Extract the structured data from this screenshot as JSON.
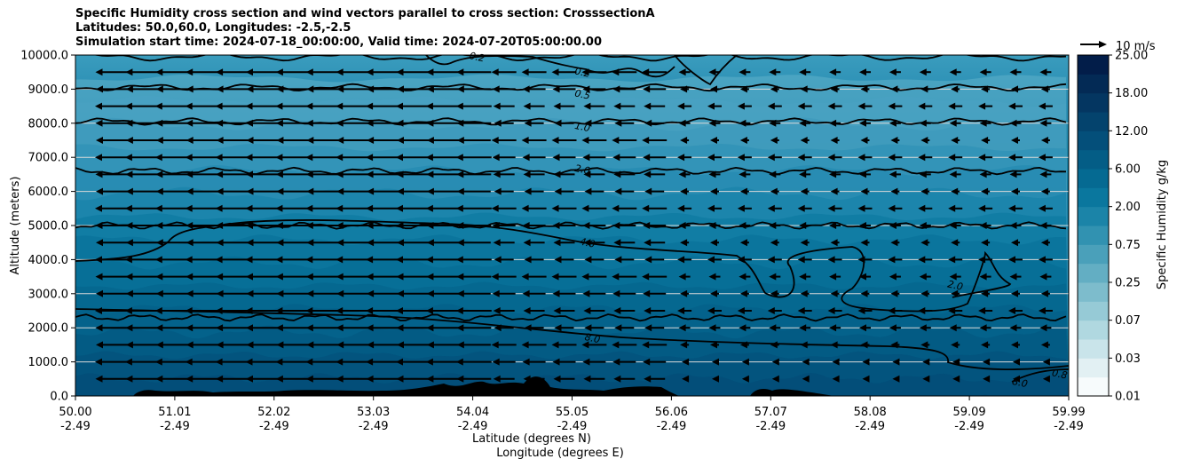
{
  "chart_data": {
    "type": "contour",
    "title_lines": [
      "Specific Humidity cross section and wind vectors parallel to cross section: CrosssectionA",
      "Latitudes: 50.0,60.0, Longitudes: -2.5,-2.5",
      "Simulation start time: 2024-07-18_00:00:00, Valid time: 2024-07-20T05:00:00.00"
    ],
    "ylabel": "Altitude (meters)",
    "xlabel_lat": "Latitude (degrees N)",
    "xlabel_lon": "Longitude (degrees E)",
    "ylim": [
      0,
      10000
    ],
    "xlim": [
      50.0,
      59.99
    ],
    "y_ticks": [
      "0.0",
      "1000.0",
      "2000.0",
      "3000.0",
      "4000.0",
      "5000.0",
      "6000.0",
      "7000.0",
      "8000.0",
      "9000.0",
      "10000.0"
    ],
    "x_ticks": [
      {
        "lat": "50.00",
        "lon": "-2.49"
      },
      {
        "lat": "51.01",
        "lon": "-2.49"
      },
      {
        "lat": "52.02",
        "lon": "-2.49"
      },
      {
        "lat": "53.03",
        "lon": "-2.49"
      },
      {
        "lat": "54.04",
        "lon": "-2.49"
      },
      {
        "lat": "55.05",
        "lon": "-2.49"
      },
      {
        "lat": "56.06",
        "lon": "-2.49"
      },
      {
        "lat": "57.07",
        "lon": "-2.49"
      },
      {
        "lat": "58.08",
        "lon": "-2.49"
      },
      {
        "lat": "59.09",
        "lon": "-2.49"
      },
      {
        "lat": "59.99",
        "lon": "-2.49"
      }
    ],
    "colorbar": {
      "label": "Specific Humidity g/kg",
      "tick_labels": [
        "0.01",
        "0.03",
        "0.07",
        "0.25",
        "0.75",
        "2.00",
        "6.00",
        "12.00",
        "18.00",
        "25.00"
      ],
      "colors": [
        "#f7fbfc",
        "#e2f0f3",
        "#c9e4ea",
        "#b0d8e0",
        "#96cad6",
        "#7dbccc",
        "#63aec3",
        "#4aa0ba",
        "#3192b1",
        "#1b84a8",
        "#0a779e",
        "#056a92",
        "#045d86",
        "#044f7a",
        "#04436d",
        "#043661",
        "#032a55",
        "#021d49"
      ]
    },
    "contour_labels": [
      {
        "text": "0.2",
        "lat": 54.04,
        "alt": 9950
      },
      {
        "text": "0.2",
        "lat": 55.1,
        "alt": 9500
      },
      {
        "text": "0.5",
        "lat": 55.1,
        "alt": 8850
      },
      {
        "text": "1.0",
        "lat": 55.1,
        "alt": 7900
      },
      {
        "text": "2.0",
        "lat": 55.1,
        "alt": 6650
      },
      {
        "text": "4.0",
        "lat": 55.15,
        "alt": 4500
      },
      {
        "text": "8.0",
        "lat": 55.2,
        "alt": 1700
      },
      {
        "text": "2.0",
        "lat": 58.85,
        "alt": 3250
      },
      {
        "text": "8.0",
        "lat": 59.5,
        "alt": 400
      },
      {
        "text": "0.8",
        "lat": 59.9,
        "alt": 650
      }
    ],
    "wind_reference": {
      "label": "10 m/s",
      "speed": 10
    },
    "wind_direction": "southward (toward decreasing latitude)",
    "grid": "horizontal"
  }
}
